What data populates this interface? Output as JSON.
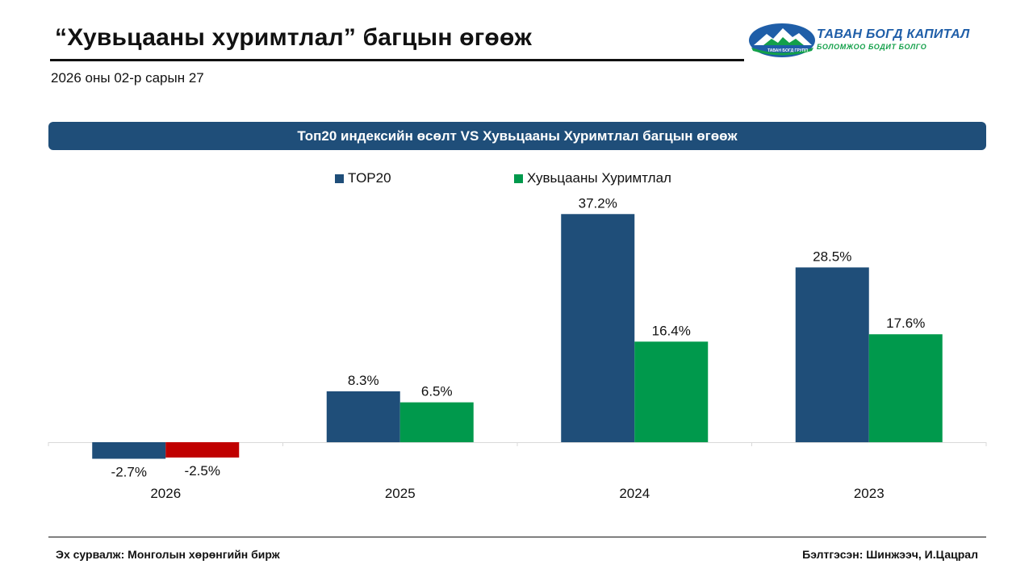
{
  "header": {
    "title": "“Хувьцааны хуримтлал” багцын өгөөж",
    "date": "2026 оны 02-р сарын 27"
  },
  "logo": {
    "name": "ТАВАН БОГД КАПИТАЛ",
    "slogan": "БОЛОМЖОО БОДИТ БОЛГО",
    "small_text": "ТАВАН БОГД ГРУПП",
    "colors": {
      "blue": "#1f5ea8",
      "green": "#13a04a"
    }
  },
  "chart_data": {
    "type": "bar",
    "title": "Топ20 индексийн өсөлт VS Хувьцааны Хуримтлал багцын өгөөж",
    "categories": [
      "2026",
      "2025",
      "2024",
      "2023"
    ],
    "series": [
      {
        "name": "TOP20",
        "values": [
          -2.7,
          8.3,
          37.2,
          28.5
        ],
        "labels": [
          "-2.7%",
          "8.3%",
          "37.2%",
          "28.5%"
        ],
        "color": "#1f4e79"
      },
      {
        "name": "Хувьцааны Хуримтлал",
        "values": [
          -2.5,
          6.5,
          16.4,
          17.6
        ],
        "labels": [
          "-2.5%",
          "6.5%",
          "16.4%",
          "17.6%"
        ],
        "color": "#00994c",
        "negative_color": "#c00000"
      }
    ],
    "ylim": [
      -3.5,
      38
    ],
    "grid": false,
    "legend": "top-center",
    "xlabel": "",
    "ylabel": ""
  },
  "footer": {
    "source": "Эх сурвалж: Монголын хөрөнгийн бирж",
    "author": "Бэлтгэсэн: Шинжээч, И.Цацрал"
  },
  "colors": {
    "banner": "#1f4e79",
    "text": "#111111"
  }
}
